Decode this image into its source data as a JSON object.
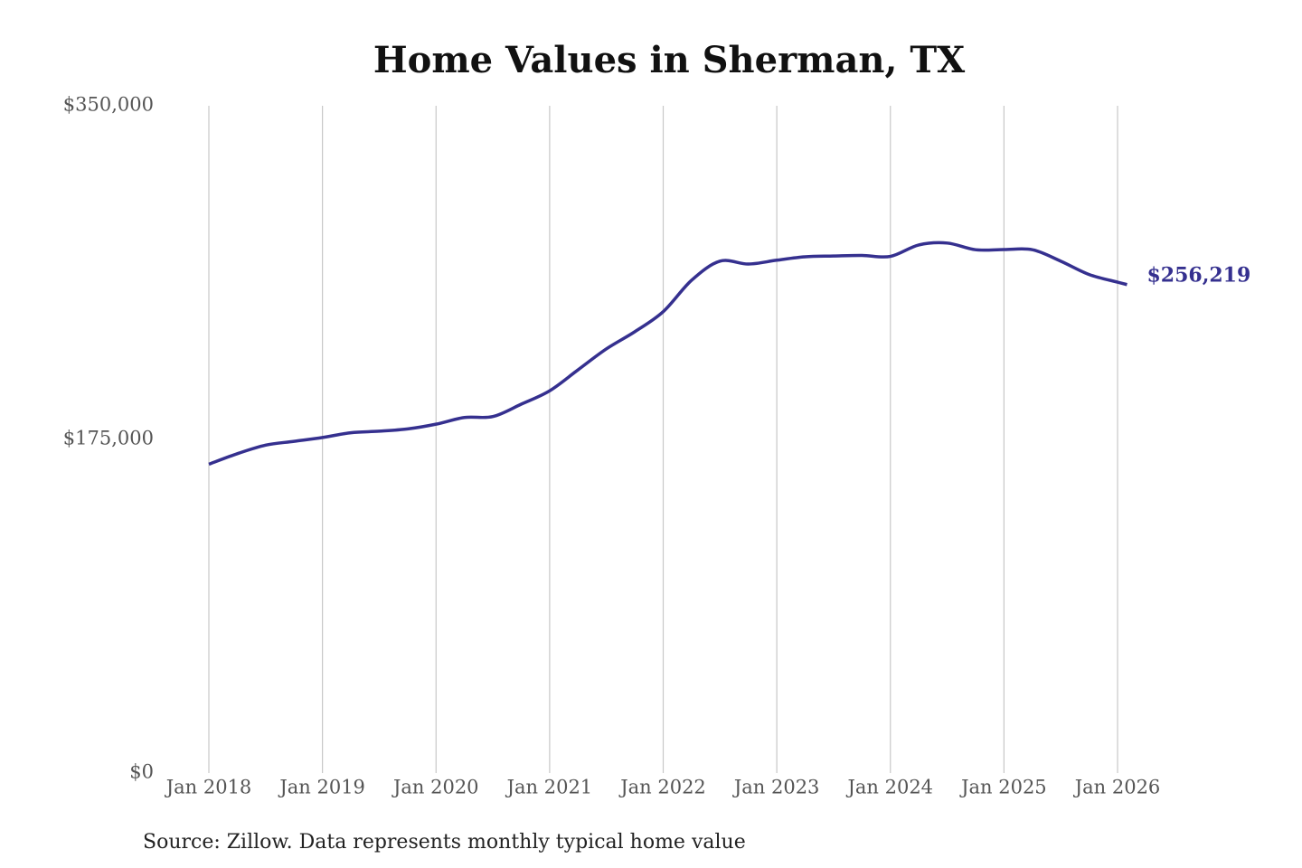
{
  "chart_data": {
    "type": "line",
    "title": "Home Values in Sherman, TX",
    "source": "Source: Zillow. Data represents monthly typical home value",
    "x": [
      "2018-01",
      "2018-04",
      "2018-07",
      "2018-10",
      "2019-01",
      "2019-04",
      "2019-07",
      "2019-10",
      "2020-01",
      "2020-04",
      "2020-07",
      "2020-10",
      "2021-01",
      "2021-04",
      "2021-07",
      "2021-10",
      "2022-01",
      "2022-04",
      "2022-07",
      "2022-10",
      "2023-01",
      "2023-04",
      "2023-07",
      "2023-10",
      "2024-01",
      "2024-04",
      "2024-07",
      "2024-10",
      "2025-01",
      "2025-04",
      "2025-07",
      "2025-10",
      "2026-01",
      "2026-02"
    ],
    "series": [
      {
        "name": "Home value",
        "color": "#35308f",
        "values": [
          162000,
          167500,
          172000,
          174000,
          176000,
          178500,
          179300,
          180500,
          183000,
          186500,
          187000,
          193500,
          200500,
          211500,
          222500,
          231500,
          242000,
          258500,
          268500,
          267000,
          269000,
          270800,
          271200,
          271500,
          271000,
          277000,
          278000,
          274500,
          274600,
          274500,
          268500,
          261500,
          257500,
          256219
        ],
        "value_labels": [
          null,
          null,
          null,
          null,
          null,
          null,
          null,
          null,
          null,
          null,
          null,
          null,
          null,
          null,
          null,
          null,
          null,
          null,
          null,
          null,
          null,
          null,
          null,
          null,
          null,
          null,
          null,
          null,
          null,
          null,
          null,
          null,
          null,
          "$256,219"
        ]
      }
    ],
    "xticks": [
      {
        "value": "2018-01",
        "label": "Jan 2018"
      },
      {
        "value": "2019-01",
        "label": "Jan 2019"
      },
      {
        "value": "2020-01",
        "label": "Jan 2020"
      },
      {
        "value": "2021-01",
        "label": "Jan 2021"
      },
      {
        "value": "2022-01",
        "label": "Jan 2022"
      },
      {
        "value": "2023-01",
        "label": "Jan 2023"
      },
      {
        "value": "2024-01",
        "label": "Jan 2024"
      },
      {
        "value": "2025-01",
        "label": "Jan 2025"
      },
      {
        "value": "2026-01",
        "label": "Jan 2026"
      }
    ],
    "ylim": [
      0,
      350000
    ],
    "yticks": [
      {
        "value": 0,
        "label": "$0"
      },
      {
        "value": 175000,
        "label": "$175,000"
      },
      {
        "value": 350000,
        "label": "$350,000"
      }
    ],
    "grid": "x"
  }
}
